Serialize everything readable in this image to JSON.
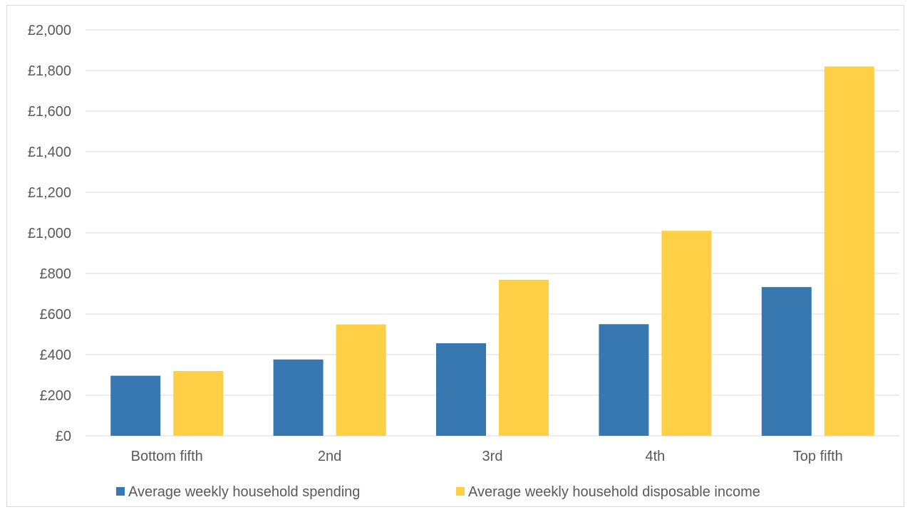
{
  "chart_data": {
    "type": "bar",
    "categories": [
      "Bottom fifth",
      "2nd",
      "3rd",
      "4th",
      "Top fifth"
    ],
    "series": [
      {
        "name": "Average weekly household spending",
        "color": "#3878b0",
        "values": [
          296,
          376,
          456,
          550,
          733
        ]
      },
      {
        "name": "Average weekly household disposable income",
        "color": "#ffd046",
        "values": [
          319,
          549,
          769,
          1010,
          1820
        ]
      }
    ],
    "y_ticks": [
      "£0",
      "£200",
      "£400",
      "£600",
      "£800",
      "£1,000",
      "£1,200",
      "£1,400",
      "£1,600",
      "£1,800",
      "£2,000"
    ],
    "ylim": [
      0,
      2000
    ],
    "y_step": 200,
    "grid": true,
    "legend_position": "bottom",
    "title": "",
    "xlabel": "",
    "ylabel": ""
  }
}
